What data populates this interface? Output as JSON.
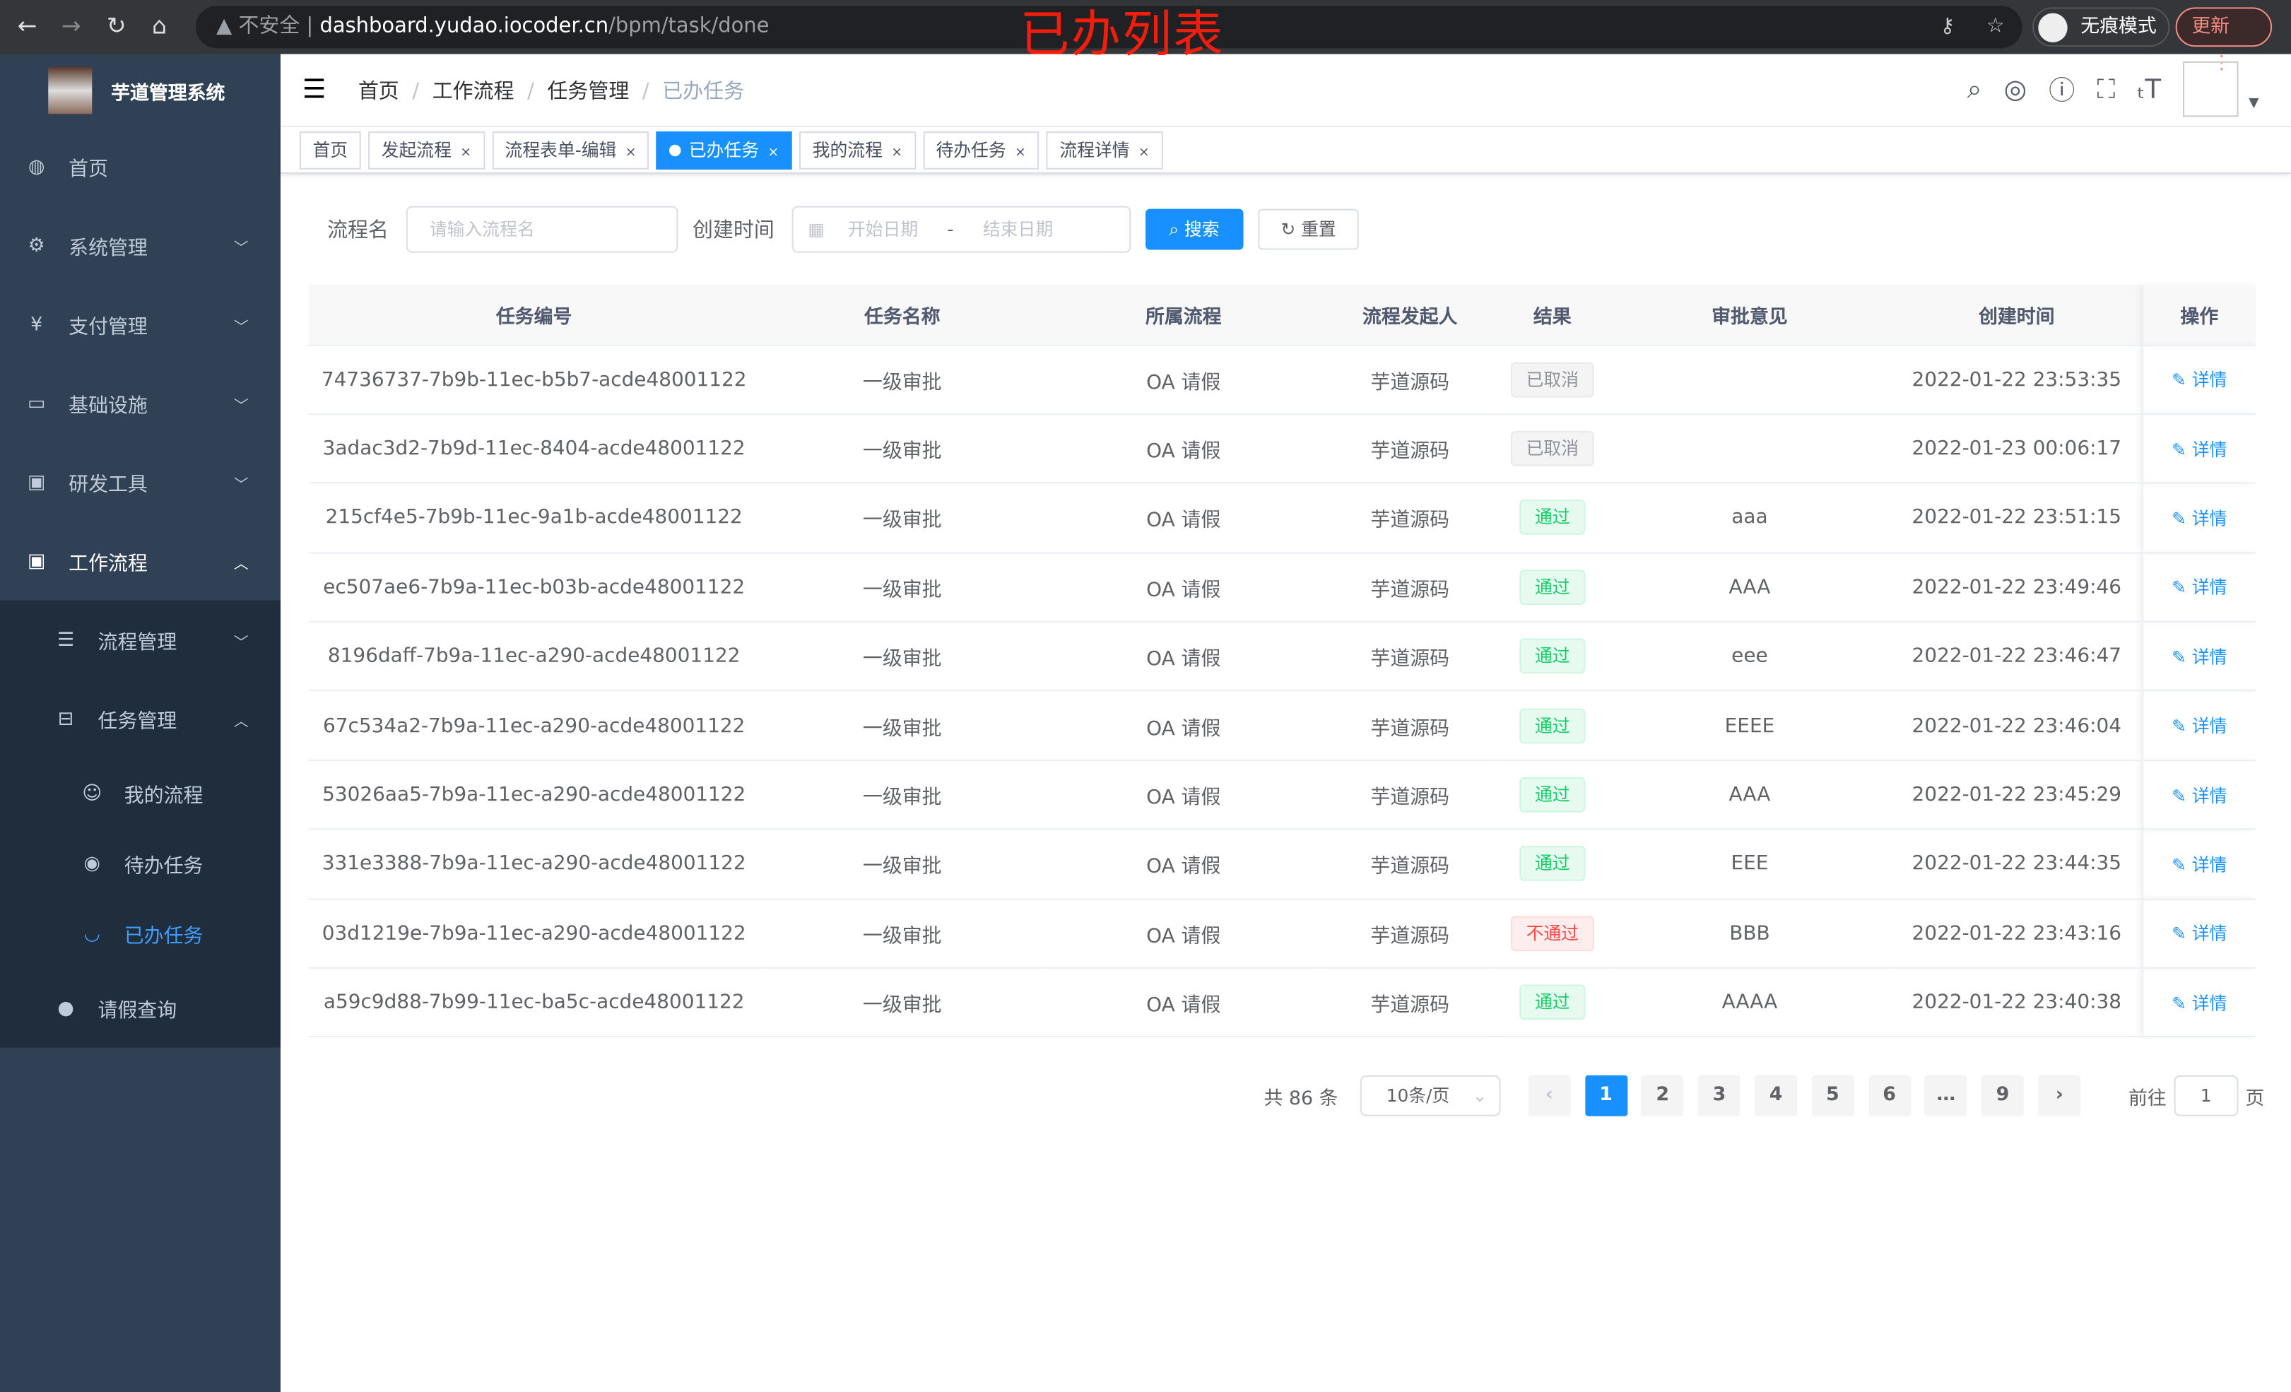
{
  "browser": {
    "security": "不安全",
    "url_host": "dashboard.yudao.iocoder.cn",
    "url_path": "/bpm/task/done",
    "incognito": "无痕模式",
    "update": "更新"
  },
  "overlay_title": "已办列表",
  "sidebar": {
    "title": "芋道管理系统",
    "items": [
      {
        "label": "首页",
        "icon": "dashboard-icon"
      },
      {
        "label": "系统管理",
        "icon": "gear-icon"
      },
      {
        "label": "支付管理",
        "icon": "yen-icon"
      },
      {
        "label": "基础设施",
        "icon": "monitor-icon"
      },
      {
        "label": "研发工具",
        "icon": "toolbox-icon"
      },
      {
        "label": "工作流程",
        "icon": "toolbox-icon"
      }
    ],
    "workflow_children": [
      {
        "label": "流程管理"
      },
      {
        "label": "任务管理"
      }
    ],
    "task_children": [
      {
        "label": "我的流程"
      },
      {
        "label": "待办任务"
      },
      {
        "label": "已办任务"
      }
    ],
    "leave": "请假查询"
  },
  "breadcrumb": [
    "首页",
    "工作流程",
    "任务管理",
    "已办任务"
  ],
  "tags": [
    "首页",
    "发起流程",
    "流程表单-编辑",
    "已办任务",
    "我的流程",
    "待办任务",
    "流程详情"
  ],
  "filter": {
    "name_label": "流程名",
    "name_placeholder": "请输入流程名",
    "time_label": "创建时间",
    "start_placeholder": "开始日期",
    "sep": "-",
    "end_placeholder": "结束日期",
    "search": "搜索",
    "reset": "重置"
  },
  "table": {
    "headers": [
      "任务编号",
      "任务名称",
      "所属流程",
      "流程发起人",
      "结果",
      "审批意见",
      "创建时间",
      "操作"
    ],
    "detail": "详情",
    "rows": [
      [
        "74736737-7b9b-11ec-b5b7-acde48001122",
        "一级审批",
        "OA 请假",
        "芋道源码",
        "已取消",
        "",
        "2022-01-22 23:53:35"
      ],
      [
        "3adac3d2-7b9d-11ec-8404-acde48001122",
        "一级审批",
        "OA 请假",
        "芋道源码",
        "已取消",
        "",
        "2022-01-23 00:06:17"
      ],
      [
        "215cf4e5-7b9b-11ec-9a1b-acde48001122",
        "一级审批",
        "OA 请假",
        "芋道源码",
        "通过",
        "aaa",
        "2022-01-22 23:51:15"
      ],
      [
        "ec507ae6-7b9a-11ec-b03b-acde48001122",
        "一级审批",
        "OA 请假",
        "芋道源码",
        "通过",
        "AAA",
        "2022-01-22 23:49:46"
      ],
      [
        "8196daff-7b9a-11ec-a290-acde48001122",
        "一级审批",
        "OA 请假",
        "芋道源码",
        "通过",
        "eee",
        "2022-01-22 23:46:47"
      ],
      [
        "67c534a2-7b9a-11ec-a290-acde48001122",
        "一级审批",
        "OA 请假",
        "芋道源码",
        "通过",
        "EEEE",
        "2022-01-22 23:46:04"
      ],
      [
        "53026aa5-7b9a-11ec-a290-acde48001122",
        "一级审批",
        "OA 请假",
        "芋道源码",
        "通过",
        "AAA",
        "2022-01-22 23:45:29"
      ],
      [
        "331e3388-7b9a-11ec-a290-acde48001122",
        "一级审批",
        "OA 请假",
        "芋道源码",
        "通过",
        "EEE",
        "2022-01-22 23:44:35"
      ],
      [
        "03d1219e-7b9a-11ec-a290-acde48001122",
        "一级审批",
        "OA 请假",
        "芋道源码",
        "不通过",
        "BBB",
        "2022-01-22 23:43:16"
      ],
      [
        "a59c9d88-7b99-11ec-ba5c-acde48001122",
        "一级审批",
        "OA 请假",
        "芋道源码",
        "通过",
        "AAAA",
        "2022-01-22 23:40:38"
      ]
    ]
  },
  "pagination": {
    "total": "共 86 条",
    "page_size": "10条/页",
    "pages": [
      "1",
      "2",
      "3",
      "4",
      "5",
      "6",
      "…",
      "9"
    ],
    "current": "1",
    "goto": "前往",
    "goto_value": "1",
    "page_unit": "页"
  }
}
